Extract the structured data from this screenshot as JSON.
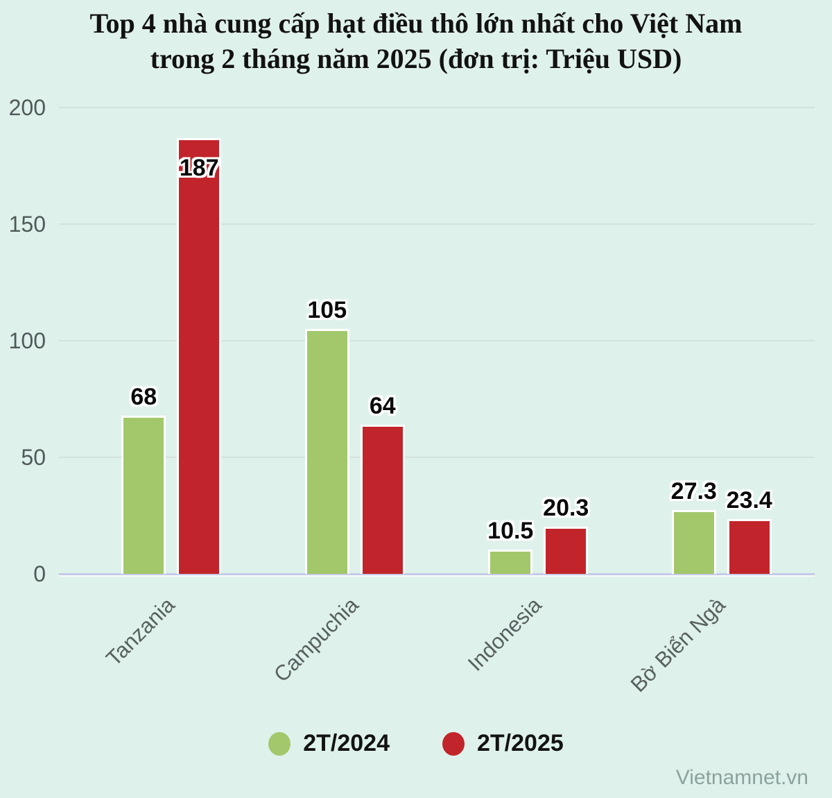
{
  "page": {
    "watermark": "Vietnamnet.vn",
    "background_color": "#dff1eb"
  },
  "chart_data": {
    "type": "bar",
    "title": "Top 4 nhà cung cấp hạt điều thô lớn nhất cho Việt Nam trong 2 tháng năm 2025 (đơn trị: Triệu USD)",
    "categories": [
      "Tanzania",
      "Campuchia",
      "Indonesia",
      "Bờ Biển Ngà"
    ],
    "series": [
      {
        "name": "2T/2024",
        "color": "#a2c86b",
        "values": [
          68,
          105,
          10.5,
          27.3
        ]
      },
      {
        "name": "2T/2025",
        "color": "#c2242b",
        "values": [
          187,
          64,
          20.3,
          23.4
        ]
      }
    ],
    "labels_inside": [
      [
        false,
        false,
        false,
        false
      ],
      [
        true,
        false,
        false,
        false
      ]
    ],
    "ylim": [
      0,
      200
    ],
    "yticks": [
      0,
      50,
      100,
      150,
      200
    ],
    "grid": true,
    "legend_position": "bottom",
    "grid_color": "#d3e2dd",
    "baseline_color": "#c3cbe6"
  }
}
